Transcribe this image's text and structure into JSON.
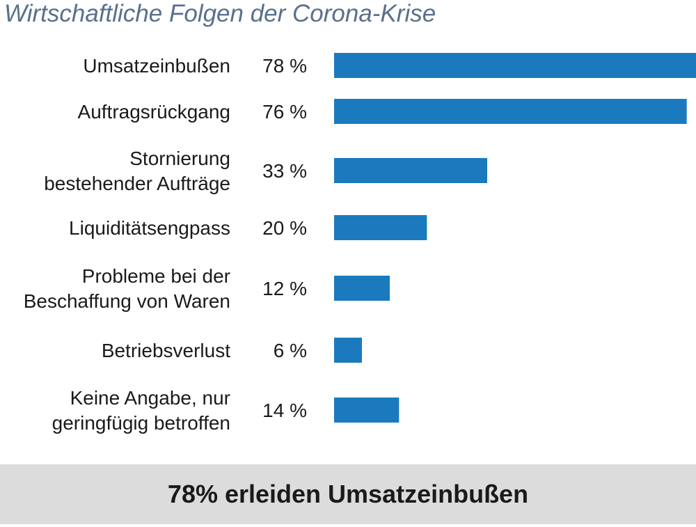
{
  "title": "Wirtschaftliche Folgen der Corona-Krise",
  "colors": {
    "bar": "#1a7abd",
    "title": "#5a6f8c",
    "footer_bg": "#dcdcdc"
  },
  "chart_data": {
    "type": "bar",
    "orientation": "horizontal",
    "title": "Wirtschaftliche Folgen der Corona-Krise",
    "categories": [
      "Umsatzeinbußen",
      "Auftragsrückgang",
      "Stornierung bestehender Aufträge",
      "Liquiditätsengpass",
      "Probleme bei der Beschaffung von Waren",
      "Betriebsverlust",
      "Keine Angabe, nur geringfügig betroffen"
    ],
    "category_lines": [
      [
        "Umsatzeinbußen"
      ],
      [
        "Auftragsrückgang"
      ],
      [
        "Stornierung",
        "bestehender Aufträge"
      ],
      [
        "Liquiditätsengpass"
      ],
      [
        "Probleme bei der",
        "Beschaffung von Waren"
      ],
      [
        "Betriebsverlust"
      ],
      [
        "Keine Angabe, nur",
        "geringfügig betroffen"
      ]
    ],
    "values": [
      78,
      76,
      33,
      20,
      12,
      6,
      14
    ],
    "value_labels": [
      "78 %",
      "76 %",
      "33 %",
      "20 %",
      "12 %",
      "6 %",
      "14 %"
    ],
    "unit": "%",
    "xlabel": "",
    "ylabel": "",
    "grid": false,
    "legend": "none"
  },
  "footer": {
    "text": "78% erleiden Umsatzeinbußen"
  }
}
